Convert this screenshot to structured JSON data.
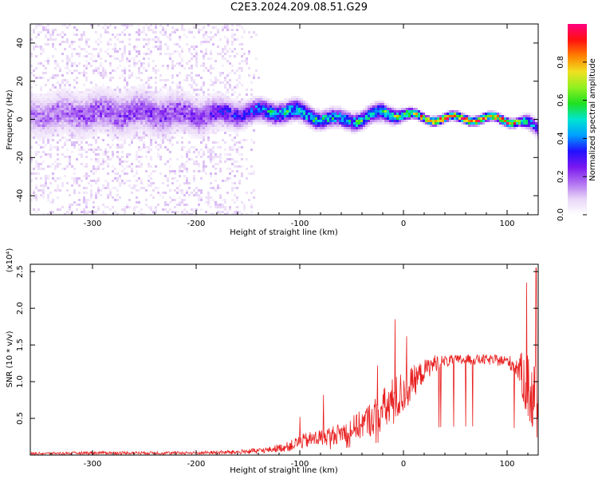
{
  "title": "C2E3.2024.209.08.51.G29",
  "colors": {
    "snr_line": "#e82020",
    "spectrogram_palette": [
      "#ffffff",
      "#e8d5f7",
      "#b070f0",
      "#7a18f0",
      "#2010ff",
      "#00a0ff",
      "#00e5d0",
      "#20e020",
      "#90f020",
      "#f0e020",
      "#ff8000",
      "#ff1010",
      "#ff007f"
    ]
  },
  "chart_data": [
    {
      "type": "heatmap",
      "title": "C2E3.2024.209.08.51.G29",
      "xlabel": "Height of straight line (km)",
      "ylabel": "Frequency (Hz)",
      "xlim": [
        -360,
        130
      ],
      "ylim": [
        -50,
        50
      ],
      "xticks": [
        -300,
        -200,
        -100,
        0,
        100
      ],
      "xtick_labels": [
        "-300",
        "-200",
        "-100",
        "0",
        "100"
      ],
      "yticks": [
        -40,
        -20,
        0,
        20,
        40
      ],
      "ytick_labels": [
        "-40",
        "-20",
        "0",
        "20",
        "40"
      ],
      "grid": false,
      "colorbar": {
        "label": "Normalized spectral amplitude",
        "range": [
          0,
          1
        ],
        "ticks": [
          0.0,
          0.2,
          0.4,
          0.6,
          0.8
        ],
        "tick_labels": [
          "0.0",
          "0.2",
          "0.4",
          "0.6",
          "0.8"
        ]
      },
      "ridge": {
        "x": [
          -350,
          -300,
          -250,
          -200,
          -150,
          -120,
          -100,
          -80,
          -60,
          -40,
          -20,
          0,
          20,
          40,
          60,
          80,
          100,
          110,
          120,
          130
        ],
        "center_freq": [
          3,
          4,
          4,
          3,
          4,
          5,
          4,
          1,
          0,
          1,
          4,
          3,
          1,
          1,
          1,
          1,
          0,
          0,
          -2,
          -6
        ],
        "peak_amplitude": [
          0.15,
          0.18,
          0.2,
          0.2,
          0.3,
          0.45,
          0.45,
          0.45,
          0.4,
          0.45,
          0.5,
          0.55,
          0.7,
          0.8,
          0.8,
          0.75,
          0.8,
          0.7,
          0.4,
          0.3
        ],
        "spread_hz": [
          14,
          14,
          14,
          12,
          8,
          7,
          7,
          6,
          6,
          6,
          6,
          4,
          3,
          3,
          3,
          3,
          3,
          3,
          5,
          6
        ]
      }
    },
    {
      "type": "line",
      "xlabel": "Height of straight line (km)",
      "ylabel": "SNR (10 * v/v)",
      "y_multiplier_label": "(x10⁴)",
      "xlim": [
        -360,
        130
      ],
      "ylim": [
        0,
        2.6
      ],
      "xticks": [
        -300,
        -200,
        -100,
        0,
        100
      ],
      "xtick_labels": [
        "-300",
        "-200",
        "-100",
        "0",
        "100"
      ],
      "yticks": [
        0.5,
        1.0,
        1.5,
        2.0,
        2.5
      ],
      "ytick_labels": [
        "0.5",
        "1.0",
        "1.5",
        "2.0",
        "2.5"
      ],
      "grid": false,
      "series": [
        {
          "color": "#e82020",
          "envelope_x": [
            -360,
            -300,
            -250,
            -200,
            -160,
            -130,
            -110,
            -100,
            -80,
            -60,
            -40,
            -20,
            -10,
            0,
            10,
            20,
            30,
            40,
            60,
            80,
            100,
            110,
            118,
            124,
            130
          ],
          "envelope_mean": [
            0.02,
            0.03,
            0.03,
            0.03,
            0.04,
            0.07,
            0.12,
            0.18,
            0.24,
            0.3,
            0.42,
            0.6,
            0.72,
            0.85,
            1.0,
            1.15,
            1.25,
            1.28,
            1.3,
            1.3,
            1.28,
            1.2,
            1.0,
            0.8,
            0.8
          ],
          "envelope_noise": [
            0.015,
            0.02,
            0.02,
            0.02,
            0.03,
            0.04,
            0.07,
            0.1,
            0.12,
            0.14,
            0.2,
            0.3,
            0.35,
            0.3,
            0.22,
            0.15,
            0.12,
            0.08,
            0.07,
            0.07,
            0.08,
            0.15,
            0.45,
            0.6,
            0.6
          ],
          "spikes": [
            {
              "x": -100,
              "y": 0.52
            },
            {
              "x": -77,
              "y": 0.82
            },
            {
              "x": -25,
              "y": 1.22
            },
            {
              "x": -8,
              "y": 1.85
            },
            {
              "x": 3,
              "y": 1.62
            },
            {
              "x": 36,
              "y": 1.75
            },
            {
              "x": 119,
              "y": 2.35
            },
            {
              "x": 128,
              "y": 2.55
            }
          ]
        }
      ]
    }
  ]
}
